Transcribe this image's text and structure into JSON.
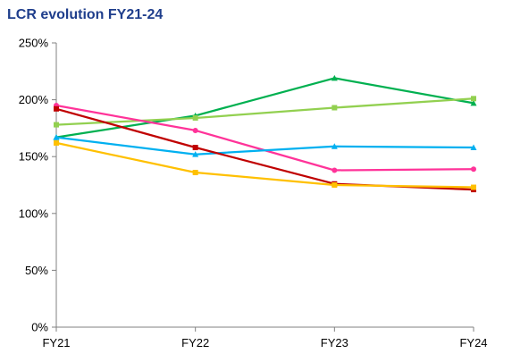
{
  "chart_data": {
    "type": "line",
    "title": "LCR evolution FY21-24",
    "xlabel": "",
    "ylabel": "",
    "categories": [
      "FY21",
      "FY22",
      "FY23",
      "FY24"
    ],
    "y_ticks": [
      "0%",
      "50%",
      "100%",
      "150%",
      "200%",
      "250%"
    ],
    "ylim": [
      0,
      250
    ],
    "unit": "%",
    "grid": false,
    "legend": "none",
    "series": [
      {
        "color": "#00b050",
        "marker": "triangle",
        "values": [
          167,
          186,
          219,
          197
        ]
      },
      {
        "color": "#92d050",
        "marker": "square",
        "values": [
          178,
          184,
          193,
          201
        ]
      },
      {
        "color": "#ff3399",
        "marker": "circle",
        "values": [
          195,
          173,
          138,
          139
        ]
      },
      {
        "color": "#00b0f0",
        "marker": "triangle",
        "values": [
          167,
          152,
          159,
          158
        ]
      },
      {
        "color": "#c00000",
        "marker": "square",
        "values": [
          192,
          158,
          126,
          121
        ]
      },
      {
        "color": "#ffc000",
        "marker": "square",
        "values": [
          162,
          136,
          125,
          123
        ]
      }
    ]
  }
}
